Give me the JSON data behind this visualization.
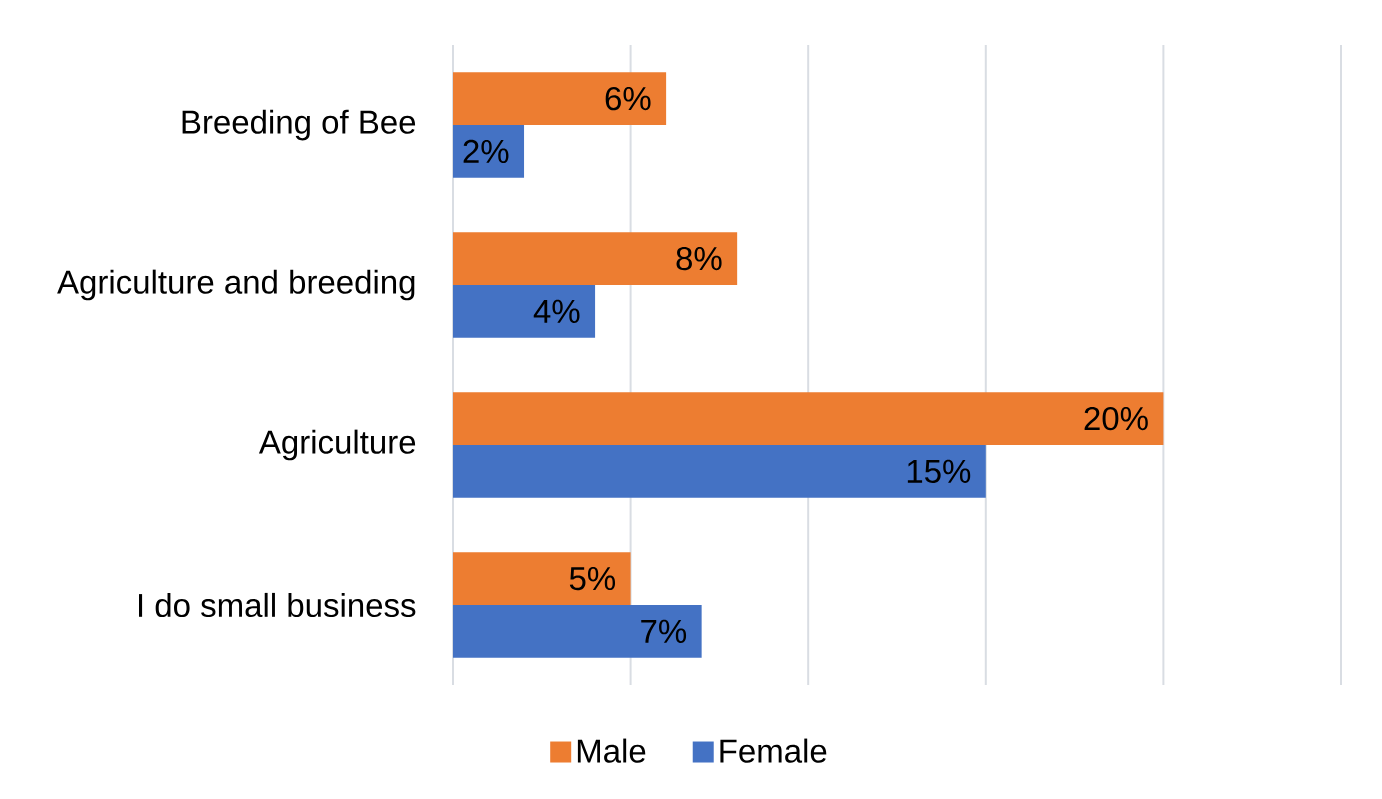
{
  "chart_data": {
    "type": "bar",
    "orientation": "horizontal",
    "categories": [
      "Breeding of Bee",
      "Agriculture and breeding",
      "Agriculture",
      "I do small business"
    ],
    "series": [
      {
        "name": "Male",
        "color": "#ed7d31",
        "values": [
          6,
          8,
          20,
          5
        ],
        "value_labels": [
          "6%",
          "8%",
          "20%",
          "5%"
        ]
      },
      {
        "name": "Female",
        "color": "#4472c4",
        "values": [
          2,
          4,
          15,
          7
        ],
        "value_labels": [
          "2%",
          "4%",
          "15%",
          "7%"
        ]
      }
    ],
    "xlim": [
      0,
      25
    ],
    "xticks": [
      {
        "value": 0,
        "label": null
      },
      {
        "value": 5,
        "label": null
      },
      {
        "value": 10,
        "label": null
      },
      {
        "value": 15,
        "label": null
      },
      {
        "value": 20,
        "label": null
      },
      {
        "value": 25,
        "label": null
      }
    ],
    "grid": "x",
    "legend": "bottom",
    "tick_labels": "y"
  }
}
